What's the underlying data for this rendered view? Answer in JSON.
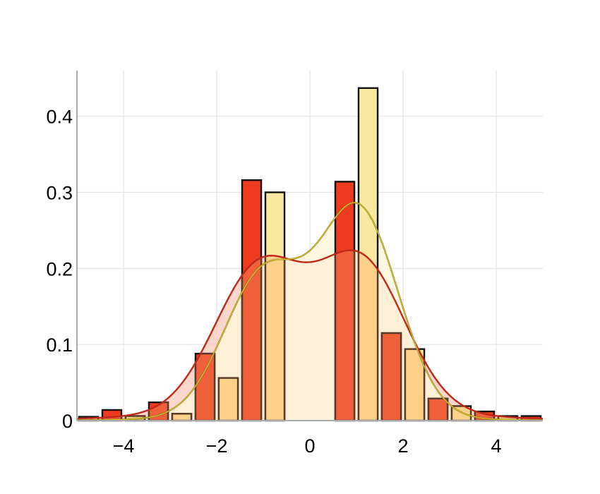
{
  "chart_data": {
    "type": "bar",
    "title": "",
    "xlabel": "",
    "ylabel": "",
    "xlim": [
      -5,
      5
    ],
    "ylim": [
      0,
      0.46
    ],
    "grid": true,
    "bin_width": 1,
    "x_ticks": [
      {
        "value": -4,
        "label": "−4"
      },
      {
        "value": -2,
        "label": "−2"
      },
      {
        "value": 0,
        "label": "0"
      },
      {
        "value": 2,
        "label": "2"
      },
      {
        "value": 4,
        "label": "4"
      }
    ],
    "y_ticks": [
      {
        "value": 0,
        "label": "0"
      },
      {
        "value": 0.1,
        "label": "0.1"
      },
      {
        "value": 0.2,
        "label": "0.2"
      },
      {
        "value": 0.3,
        "label": "0.3"
      },
      {
        "value": 0.4,
        "label": "0.4"
      }
    ],
    "bin_centers": [
      -5,
      -4,
      -3,
      -2,
      -1,
      1,
      2,
      3,
      4,
      5
    ],
    "series": [
      {
        "color": "#ee3b1f",
        "overlay_color": "#f0603a",
        "values": [
          0.007,
          0.014,
          0.024,
          0.088,
          0.316,
          0.314,
          0.115,
          0.029,
          0.012,
          0.006
        ]
      },
      {
        "color": "#fbe8a0",
        "overlay_color": "#fdd189",
        "values": [
          0.005,
          0.006,
          0.009,
          0.056,
          0.3,
          0.437,
          0.094,
          0.019,
          0.006,
          0.005
        ]
      }
    ],
    "density_curves": [
      {
        "line_color": "#c0281c",
        "fill_color": "#f8c9b8",
        "components": [
          {
            "weight": 0.45,
            "mean": -1.1,
            "sd": 0.95
          },
          {
            "weight": 0.47,
            "mean": 1.1,
            "sd": 0.95
          },
          {
            "weight": 0.08,
            "mean": 0.0,
            "sd": 3.0
          }
        ]
      },
      {
        "line_color": "#d8c233",
        "fill_color": "#fff6d8",
        "components": [
          {
            "weight": 0.4,
            "mean": -1.0,
            "sd": 0.85
          },
          {
            "weight": 0.58,
            "mean": 1.05,
            "sd": 0.85
          },
          {
            "weight": 0.02,
            "mean": 0.0,
            "sd": 3.0
          }
        ]
      }
    ]
  }
}
